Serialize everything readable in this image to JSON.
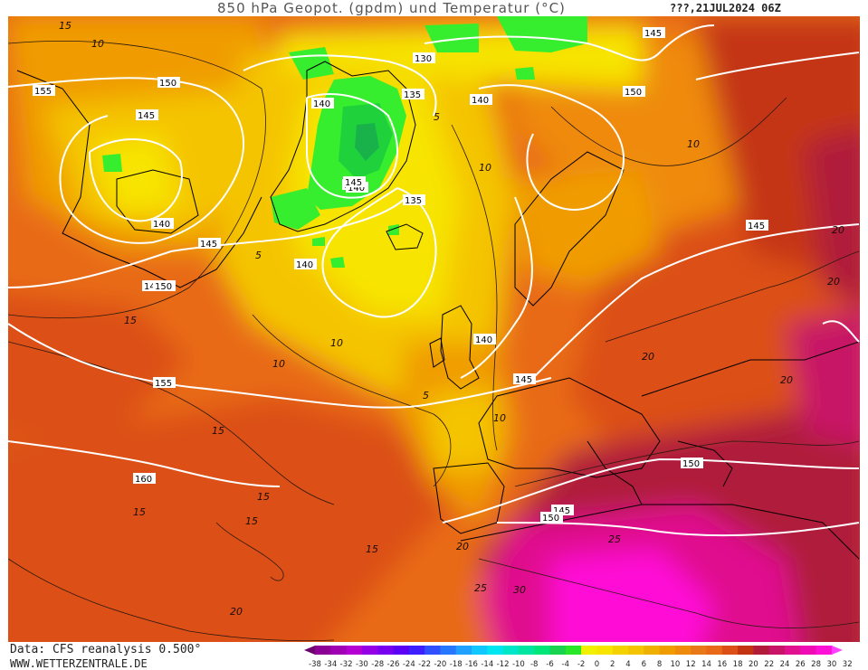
{
  "title": "850 hPa Geopot. (gpdm) und Temperatur (°C)",
  "run": "???,21JUL2024 06Z",
  "credits": {
    "data": "Data: CFS reanalysis 0.500°",
    "website": "WWW.WETTERZENTRALE.DE"
  },
  "colors": {
    "t_m6": "#19b24a",
    "t_m4": "#1fd23c",
    "t_m2": "#36ee2e",
    "t_0": "#f0f000",
    "t_4": "#f7e400",
    "t_8": "#f4c400",
    "t_12": "#f09c00",
    "t_14": "#ef8a0c",
    "t_16": "#e86a18",
    "t_18": "#dc5018",
    "t_20": "#c43412",
    "t_22": "#b01c3a",
    "t_24": "#c81466",
    "t_26": "#e0108e",
    "t_28": "#f00ab6",
    "t_30": "#ff10d6",
    "geopotential_line": "#ffffff",
    "isotherm_line": "#2a1a10",
    "coast_line": "#000000"
  },
  "scale": {
    "labels": [
      "-38",
      "-34",
      "-32",
      "-30",
      "-28",
      "-26",
      "-24",
      "-22",
      "-20",
      "-18",
      "-16",
      "-14",
      "-12",
      "-10",
      "-8",
      "-6",
      "-4",
      "-2",
      "0",
      "2",
      "4",
      "6",
      "8",
      "10",
      "12",
      "14",
      "16",
      "18",
      "20",
      "22",
      "24",
      "26",
      "28",
      "30",
      "32"
    ],
    "colors": [
      "#6e0070",
      "#8c0096",
      "#a000b4",
      "#b400d2",
      "#9600e6",
      "#7800f0",
      "#5a00f5",
      "#3c1eff",
      "#3050ff",
      "#2878ff",
      "#20a0ff",
      "#10c8ff",
      "#00e6f0",
      "#00e6c8",
      "#00e6a0",
      "#00e678",
      "#19d250",
      "#28e628",
      "#f0f000",
      "#f7e400",
      "#f4d200",
      "#f4c400",
      "#f0b000",
      "#f09c00",
      "#ef8a0c",
      "#e87818",
      "#e86a18",
      "#dc5018",
      "#c43412",
      "#b01c3a",
      "#c81466",
      "#e0108e",
      "#f00ab6",
      "#ff10d6",
      "#ff40ff"
    ]
  },
  "geopotential_labels": [
    "130",
    "135",
    "135",
    "140",
    "140",
    "140",
    "140",
    "140",
    "140",
    "140",
    "140",
    "145",
    "145",
    "145",
    "145",
    "145",
    "145",
    "145",
    "150",
    "150",
    "150",
    "150",
    "150",
    "155",
    "155",
    "160"
  ],
  "isotherm_labels": [
    "15",
    "10",
    "10",
    "10",
    "5",
    "5",
    "5",
    "10",
    "10",
    "10",
    "15",
    "15",
    "15",
    "15",
    "15",
    "15",
    "20",
    "20",
    "20",
    "20",
    "20",
    "20",
    "25",
    "25",
    "30"
  ]
}
